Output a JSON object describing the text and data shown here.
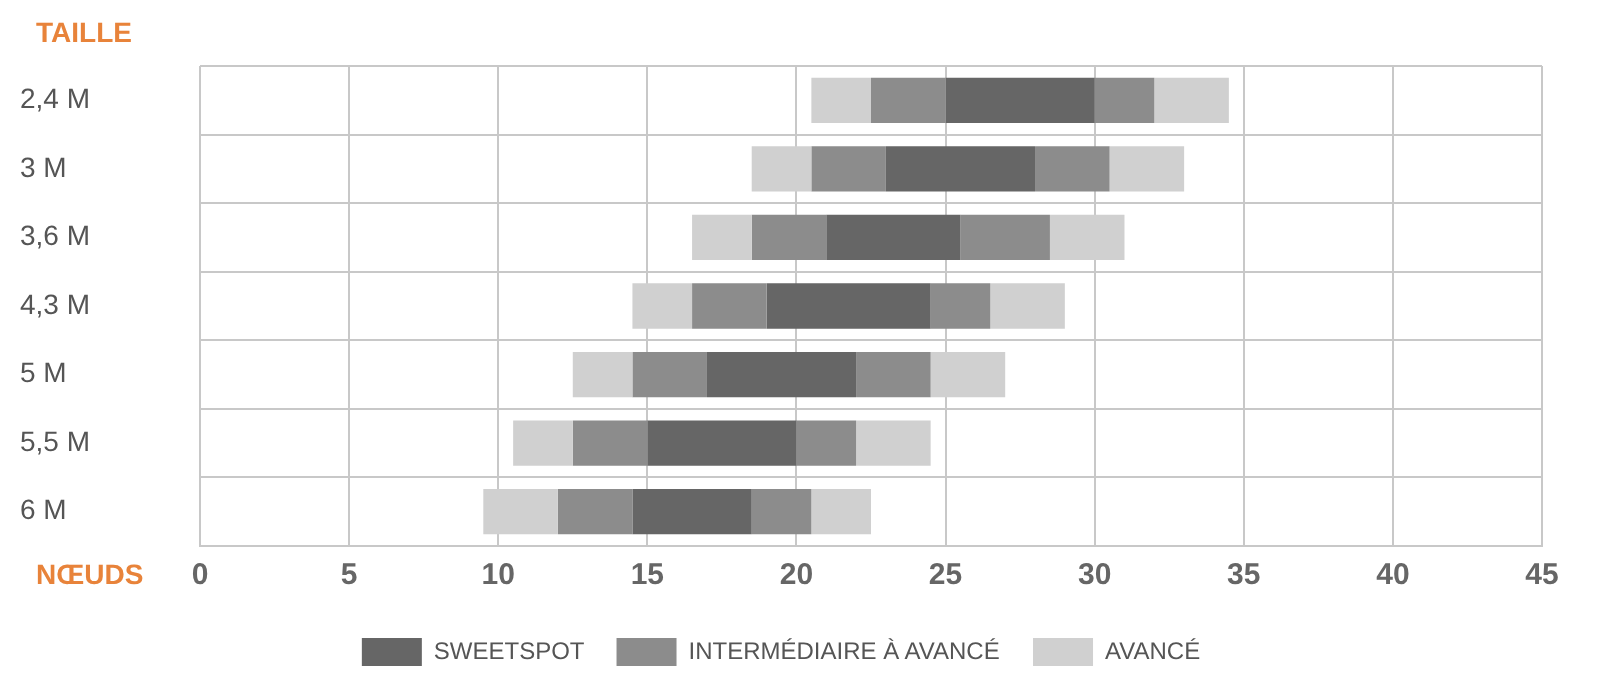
{
  "chart_data": {
    "type": "bar",
    "orientation": "horizontal",
    "xlabel": "NŒUDS",
    "ylabel": "TAILLE",
    "categories": [
      "2,4 M",
      "3 M",
      "3,6 M",
      "4,3 M",
      "5 M",
      "5,5 M",
      "6 M"
    ],
    "series": [
      {
        "color": "#d0d0d0",
        "base": [
          20.5,
          18.5,
          16.5,
          14.5,
          12.5,
          10.5,
          9.5
        ],
        "values": [
          2,
          2,
          2,
          2,
          2,
          2,
          2.5
        ]
      },
      {
        "color": "#8c8c8c",
        "base": [
          22.5,
          20.5,
          18.5,
          16.5,
          14.5,
          12.5,
          12
        ],
        "values": [
          2.5,
          2.5,
          2.5,
          2.5,
          2.5,
          2.5,
          2.5
        ]
      },
      {
        "name": "SWEETSPOT",
        "color": "#666666",
        "base": [
          25,
          23,
          21,
          19,
          17,
          15,
          14.5
        ],
        "values": [
          5,
          5,
          4.5,
          5.5,
          5,
          5,
          4
        ]
      },
      {
        "name": "INTERMÉDIAIRE À AVANCÉ",
        "color": "#8c8c8c",
        "base": [
          30,
          28,
          25.5,
          24.5,
          22,
          20,
          18.5
        ],
        "values": [
          2,
          2.5,
          3,
          2,
          2.5,
          2,
          2
        ]
      },
      {
        "name": "AVANCÉ",
        "color": "#d0d0d0",
        "base": [
          32,
          30.5,
          28.5,
          26.5,
          24.5,
          22,
          20.5
        ],
        "values": [
          2.5,
          2.5,
          2.5,
          2.5,
          2.5,
          2.5,
          2
        ]
      }
    ],
    "xlim": [
      0,
      45
    ],
    "xticks": [
      0,
      5,
      10,
      15,
      20,
      25,
      30,
      35,
      40,
      45
    ],
    "grid": true,
    "legend": "bottom"
  }
}
